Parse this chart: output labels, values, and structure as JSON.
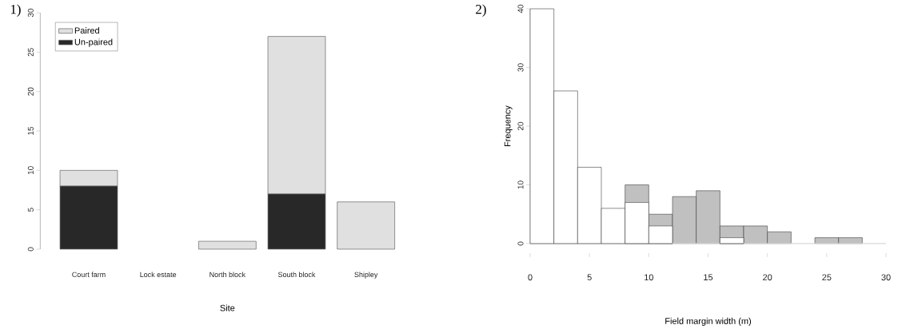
{
  "chart_data": [
    {
      "type": "bar",
      "stacked": true,
      "xlabel": "Site",
      "categories": [
        "Court farm",
        "Lock estate",
        "North block",
        "South block",
        "Shipley"
      ],
      "series": [
        {
          "name": "Un-paired",
          "color": "#282828",
          "values": [
            8,
            0,
            0,
            7,
            0
          ]
        },
        {
          "name": "Paired",
          "color": "#e0e0e0",
          "values": [
            2,
            0,
            1,
            20,
            6
          ]
        }
      ],
      "ylim": [
        0,
        30
      ],
      "yticks": [
        0,
        5,
        10,
        15,
        20,
        25,
        30
      ],
      "legend": "top left",
      "annotations": [
        "1)"
      ]
    },
    {
      "type": "histogram",
      "xlabel": "Field margin width (m)",
      "ylabel": "Frequency",
      "bins": [
        0,
        2,
        4,
        6,
        8,
        10,
        12,
        14,
        16,
        18,
        20,
        22,
        24,
        26,
        28,
        30
      ],
      "series": [
        {
          "color": "#c0c0c0",
          "values": [
            0,
            0,
            0,
            0,
            10,
            5,
            8,
            9,
            3,
            3,
            2,
            0,
            1,
            1,
            0
          ]
        },
        {
          "color": "#ffffff",
          "values": [
            40,
            26,
            13,
            6,
            7,
            3,
            0,
            0,
            1,
            0,
            0,
            0,
            0,
            0,
            0
          ]
        }
      ],
      "xlim": [
        0,
        30
      ],
      "xticks": [
        0,
        5,
        10,
        15,
        20,
        25,
        30
      ],
      "ylim": [
        0,
        40
      ],
      "yticks": [
        0,
        10,
        20,
        30,
        40
      ],
      "annotations": [
        "2)"
      ]
    }
  ]
}
